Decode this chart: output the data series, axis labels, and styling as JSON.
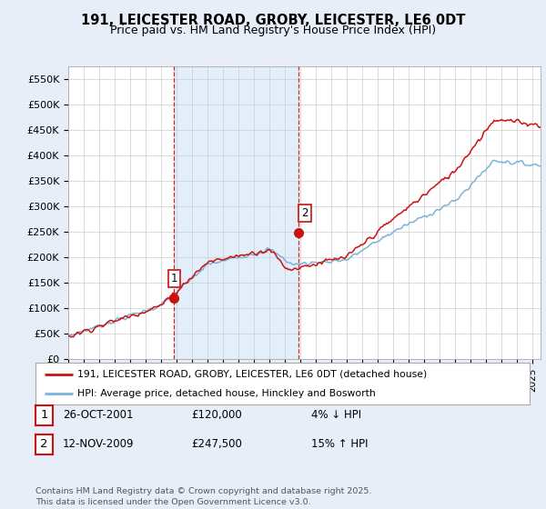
{
  "title": "191, LEICESTER ROAD, GROBY, LEICESTER, LE6 0DT",
  "subtitle": "Price paid vs. HM Land Registry's House Price Index (HPI)",
  "ylabel_ticks": [
    "£0",
    "£50K",
    "£100K",
    "£150K",
    "£200K",
    "£250K",
    "£300K",
    "£350K",
    "£400K",
    "£450K",
    "£500K",
    "£550K"
  ],
  "ytick_values": [
    0,
    50000,
    100000,
    150000,
    200000,
    250000,
    300000,
    350000,
    400000,
    450000,
    500000,
    550000
  ],
  "ylim": [
    0,
    575000
  ],
  "xlim_start": 1995.0,
  "xlim_end": 2025.5,
  "hpi_color": "#7ab4d8",
  "price_color": "#cc1111",
  "background_color": "#e8eef8",
  "plot_bg_color": "#ffffff",
  "sale1_x": 2001.82,
  "sale1_y": 120000,
  "sale2_x": 2009.87,
  "sale2_y": 247500,
  "vline1_x": 2001.82,
  "vline2_x": 2009.87,
  "legend_line1": "191, LEICESTER ROAD, GROBY, LEICESTER, LE6 0DT (detached house)",
  "legend_line2": "HPI: Average price, detached house, Hinckley and Bosworth",
  "table_row1": [
    "1",
    "26-OCT-2001",
    "£120,000",
    "4% ↓ HPI"
  ],
  "table_row2": [
    "2",
    "12-NOV-2009",
    "£247,500",
    "15% ↑ HPI"
  ],
  "footer": "Contains HM Land Registry data © Crown copyright and database right 2025.\nThis data is licensed under the Open Government Licence v3.0.",
  "title_fontsize": 10.5,
  "subtitle_fontsize": 9
}
